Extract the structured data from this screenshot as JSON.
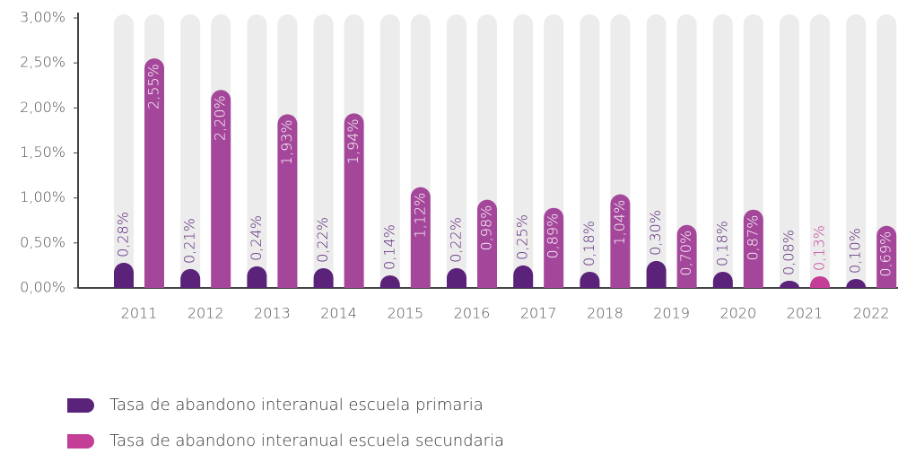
{
  "chart_data": {
    "type": "bar",
    "categories": [
      "2011",
      "2012",
      "2013",
      "2014",
      "2015",
      "2016",
      "2017",
      "2018",
      "2019",
      "2020",
      "2021",
      "2022"
    ],
    "series": [
      {
        "name": "Tasa de abandono interanual escuela primaria",
        "color": "#5a2278",
        "values": [
          0.28,
          0.21,
          0.24,
          0.22,
          0.14,
          0.22,
          0.25,
          0.18,
          0.3,
          0.18,
          0.08,
          0.1
        ],
        "value_labels": [
          "0,28%",
          "0,21%",
          "0,24%",
          "0,22%",
          "0,14%",
          "0,22%",
          "0,25%",
          "0,18%",
          "0,30%",
          "0,18%",
          "0,08%",
          "0,10%"
        ]
      },
      {
        "name": "Tasa de abandono interanual escuela  secundaria",
        "color": "#c43d97",
        "bar_colors": [
          "#a4479b",
          "#a4479b",
          "#a4479b",
          "#a4479b",
          "#a4479b",
          "#a4479b",
          "#a4479b",
          "#a4479b",
          "#a4479b",
          "#a4479b",
          "#c43d97",
          "#a4479b"
        ],
        "values": [
          2.55,
          2.2,
          1.93,
          1.94,
          1.12,
          0.98,
          0.89,
          1.04,
          0.7,
          0.87,
          0.13,
          0.69
        ],
        "value_labels": [
          "2,55%",
          "2,20%",
          "1,93%",
          "1,94%",
          "1,12%",
          "0,98%",
          "0,89%",
          "1,04%",
          "0,70%",
          "0,87%",
          "0,13%",
          "0,69%"
        ]
      }
    ],
    "ylim": [
      0,
      3
    ],
    "yticks": [
      {
        "value": 0,
        "label": "0,00%"
      },
      {
        "value": 0.5,
        "label": "0,50%"
      },
      {
        "value": 1,
        "label": "1,00%"
      },
      {
        "value": 1.5,
        "label": "1,50%"
      },
      {
        "value": 2,
        "label": "2,00%"
      },
      {
        "value": 2.5,
        "label": "2,50%"
      },
      {
        "value": 3,
        "label": "3,00%"
      }
    ]
  }
}
